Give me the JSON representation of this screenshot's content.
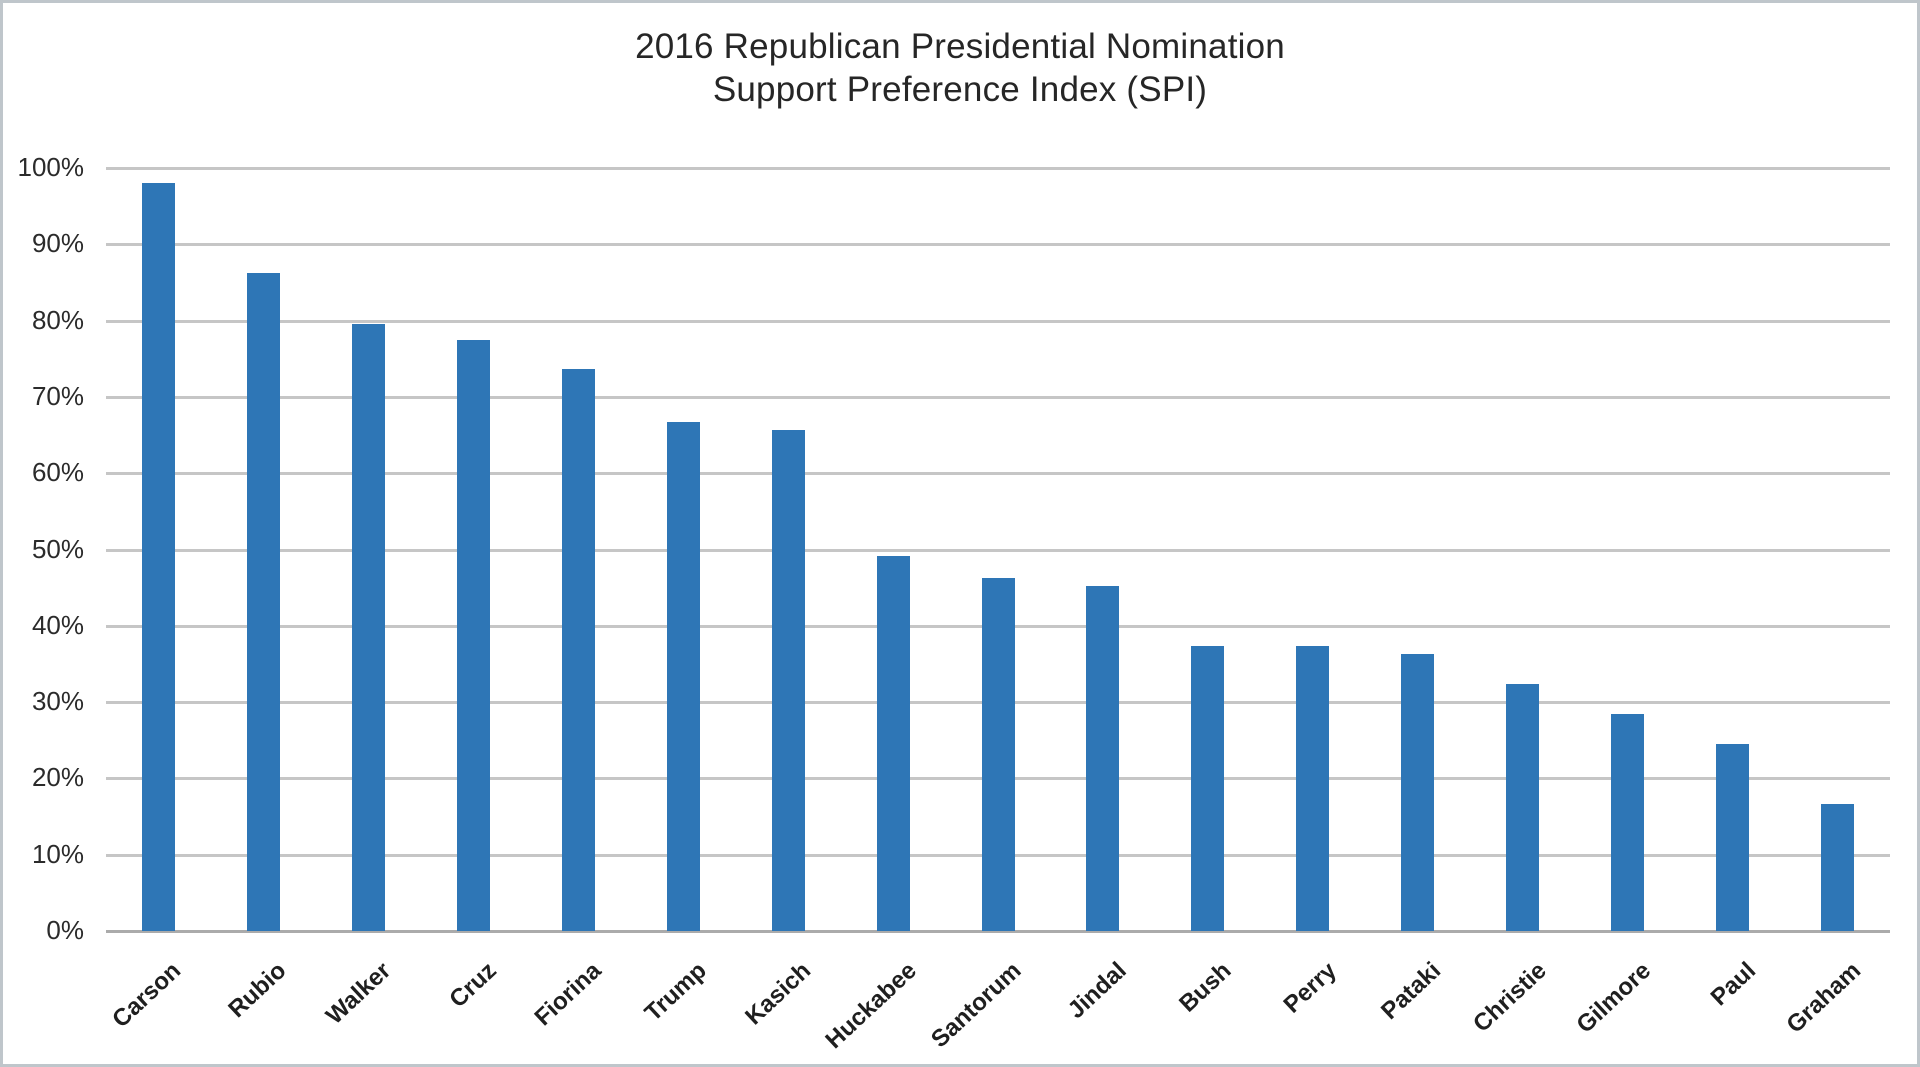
{
  "title": {
    "line1": "2016 Republican Presidential Nomination",
    "line2": "Support Preference Index (SPI)"
  },
  "chart_data": {
    "type": "bar",
    "title": "2016 Republican Presidential Nomination Support Preference Index (SPI)",
    "categories": [
      "Carson",
      "Rubio",
      "Walker",
      "Cruz",
      "Fiorina",
      "Trump",
      "Kasich",
      "Huckabee",
      "Santorum",
      "Jindal",
      "Bush",
      "Perry",
      "Pataki",
      "Christie",
      "Gilmore",
      "Paul",
      "Graham"
    ],
    "values": [
      98,
      86.3,
      79.5,
      77.5,
      73.6,
      66.7,
      65.6,
      49.1,
      46.2,
      45.2,
      37.3,
      37.3,
      36.3,
      32.4,
      28.4,
      24.5,
      16.7
    ],
    "xlabel": "",
    "ylabel": "",
    "ylim": [
      0,
      100
    ],
    "ytick_labels": [
      "100%",
      "90%",
      "80%",
      "70%",
      "60%",
      "50%",
      "40%",
      "30%",
      "20%",
      "10%",
      "0%"
    ],
    "grid": true,
    "legend_position": "none",
    "bar_color": "#2E76B6",
    "gridline_color": "#c6c6c6",
    "axis_line_color": "#ababab",
    "tick_text_color": "#2b2b2b",
    "category_text_color": "#1f1f1f",
    "title_text_color": "#262626"
  }
}
